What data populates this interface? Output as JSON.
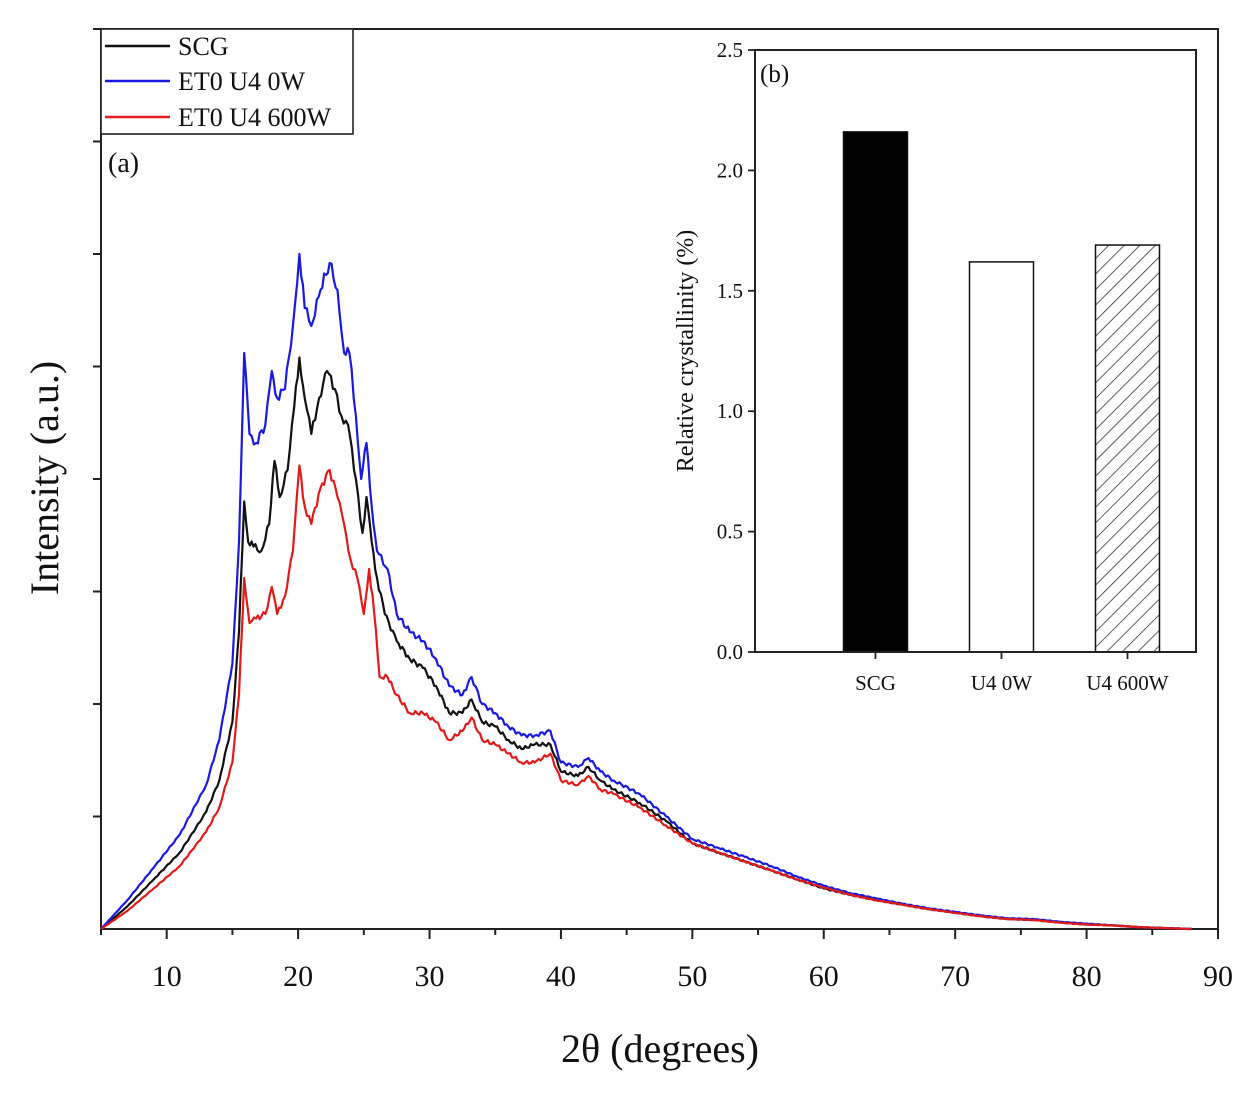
{
  "chart_data": [
    {
      "type": "line",
      "panel_label": "(a)",
      "xlabel": "2θ (degrees)",
      "ylabel": "Intensity (a.u.)",
      "xlim": [
        5,
        90
      ],
      "ylim": [
        0,
        100
      ],
      "x_ticks": [
        10,
        20,
        30,
        40,
        50,
        60,
        70,
        80,
        90
      ],
      "y_minor_tick_values": [
        12.5,
        25,
        37.5,
        50,
        62.5,
        75,
        87.5,
        100
      ],
      "y_tick_labels_shown": false,
      "legend_position": "top-left",
      "series": [
        {
          "name": "SCG",
          "color": "#111111",
          "points": [
            [
              5,
              0
            ],
            [
              7,
              2.5
            ],
            [
              9,
              5.5
            ],
            [
              11,
              8.5
            ],
            [
              13,
              13
            ],
            [
              14,
              16.5
            ],
            [
              15,
              23
            ],
            [
              15.5,
              33
            ],
            [
              15.9,
              47.5
            ],
            [
              16.2,
              43
            ],
            [
              16.6,
              42.5
            ],
            [
              17.2,
              42
            ],
            [
              17.8,
              45
            ],
            [
              18.2,
              52
            ],
            [
              18.6,
              48
            ],
            [
              19.2,
              51
            ],
            [
              19.7,
              58
            ],
            [
              20.1,
              63.5
            ],
            [
              20.5,
              59
            ],
            [
              21,
              55
            ],
            [
              21.6,
              59
            ],
            [
              22.2,
              62
            ],
            [
              22.8,
              60
            ],
            [
              23.3,
              57
            ],
            [
              23.8,
              56
            ],
            [
              24.4,
              50
            ],
            [
              24.9,
              44
            ],
            [
              25.2,
              48
            ],
            [
              25.6,
              43
            ],
            [
              26,
              39
            ],
            [
              26.6,
              35
            ],
            [
              27.5,
              32
            ],
            [
              28.5,
              30
            ],
            [
              29.5,
              29
            ],
            [
              30.5,
              27
            ],
            [
              31.5,
              24
            ],
            [
              32.5,
              24
            ],
            [
              33.2,
              25.5
            ],
            [
              34,
              23
            ],
            [
              35,
              22.5
            ],
            [
              36,
              21
            ],
            [
              37,
              20
            ],
            [
              38,
              20.5
            ],
            [
              39.2,
              20.5
            ],
            [
              40,
              17.5
            ],
            [
              41.3,
              17
            ],
            [
              42.1,
              18
            ],
            [
              43,
              16.5
            ],
            [
              44,
              15.5
            ],
            [
              46,
              14
            ],
            [
              48,
              12
            ],
            [
              50,
              9.5
            ],
            [
              52,
              8.5
            ],
            [
              54,
              7.5
            ],
            [
              56,
              6.5
            ],
            [
              58,
              5.5
            ],
            [
              60,
              4.5
            ],
            [
              62,
              3.8
            ],
            [
              64,
              3.2
            ],
            [
              66,
              2.7
            ],
            [
              68,
              2.2
            ],
            [
              70,
              1.8
            ],
            [
              72,
              1.4
            ],
            [
              74,
              1.1
            ],
            [
              76,
              1
            ],
            [
              78,
              0.7
            ],
            [
              80,
              0.5
            ],
            [
              82,
              0.4
            ],
            [
              84,
              0.2
            ],
            [
              86,
              0.1
            ],
            [
              88,
              0
            ]
          ]
        },
        {
          "name": "ET0 U4 0W",
          "color": "#1a1adf",
          "points": [
            [
              5,
              0
            ],
            [
              7,
              3.2
            ],
            [
              9,
              6.8
            ],
            [
              11,
              10.5
            ],
            [
              13,
              16
            ],
            [
              14,
              21
            ],
            [
              15,
              29.5
            ],
            [
              15.5,
              43
            ],
            [
              15.9,
              64
            ],
            [
              16.3,
              55
            ],
            [
              16.8,
              54
            ],
            [
              17.5,
              56
            ],
            [
              18,
              62
            ],
            [
              18.4,
              59
            ],
            [
              19,
              60
            ],
            [
              19.6,
              67
            ],
            [
              20.1,
              75
            ],
            [
              20.5,
              69
            ],
            [
              21,
              67
            ],
            [
              21.7,
              71
            ],
            [
              22.4,
              74
            ],
            [
              23,
              71
            ],
            [
              23.5,
              64
            ],
            [
              23.9,
              64
            ],
            [
              24.4,
              57
            ],
            [
              24.8,
              50
            ],
            [
              25.2,
              54
            ],
            [
              25.6,
              47
            ],
            [
              26,
              42
            ],
            [
              26.8,
              40
            ],
            [
              27.5,
              35
            ],
            [
              28.5,
              33
            ],
            [
              29.5,
              32
            ],
            [
              30.5,
              30
            ],
            [
              31.5,
              27
            ],
            [
              32.5,
              26
            ],
            [
              33.2,
              28
            ],
            [
              34,
              25
            ],
            [
              35,
              24
            ],
            [
              36,
              22.5
            ],
            [
              37,
              21.5
            ],
            [
              38,
              21.5
            ],
            [
              39.2,
              22
            ],
            [
              40,
              18.5
            ],
            [
              41.3,
              18
            ],
            [
              42.1,
              19
            ],
            [
              43,
              17.5
            ],
            [
              44,
              16.5
            ],
            [
              46,
              15
            ],
            [
              48,
              12.5
            ],
            [
              50,
              10
            ],
            [
              52,
              9
            ],
            [
              54,
              8
            ],
            [
              56,
              7
            ],
            [
              58,
              5.8
            ],
            [
              60,
              4.8
            ],
            [
              62,
              4
            ],
            [
              64,
              3.4
            ],
            [
              66,
              2.8
            ],
            [
              68,
              2.3
            ],
            [
              70,
              1.9
            ],
            [
              72,
              1.5
            ],
            [
              74,
              1.2
            ],
            [
              76,
              1.1
            ],
            [
              78,
              0.8
            ],
            [
              80,
              0.6
            ],
            [
              82,
              0.4
            ],
            [
              84,
              0.2
            ],
            [
              86,
              0.1
            ],
            [
              88,
              0
            ]
          ]
        },
        {
          "name": "ET0 U4 600W",
          "color": "#e21a1a",
          "points": [
            [
              5,
              0
            ],
            [
              7,
              2
            ],
            [
              9,
              4.5
            ],
            [
              11,
              7
            ],
            [
              13,
              10.8
            ],
            [
              14,
              13.5
            ],
            [
              15,
              18.5
            ],
            [
              15.5,
              26
            ],
            [
              15.9,
              39
            ],
            [
              16.3,
              34
            ],
            [
              16.8,
              34.5
            ],
            [
              17.5,
              35
            ],
            [
              18,
              38
            ],
            [
              18.4,
              35
            ],
            [
              19,
              37
            ],
            [
              19.6,
              42
            ],
            [
              20.1,
              51.5
            ],
            [
              20.5,
              47
            ],
            [
              21,
              45
            ],
            [
              21.7,
              49
            ],
            [
              22.4,
              51
            ],
            [
              23,
              48
            ],
            [
              23.5,
              45
            ],
            [
              24,
              41
            ],
            [
              24.5,
              39
            ],
            [
              25,
              35
            ],
            [
              25.4,
              40
            ],
            [
              25.8,
              35
            ],
            [
              26.2,
              28
            ],
            [
              26.8,
              28
            ],
            [
              27.5,
              26
            ],
            [
              28.5,
              24
            ],
            [
              29.5,
              24
            ],
            [
              30.5,
              23
            ],
            [
              31.5,
              21
            ],
            [
              32.5,
              22
            ],
            [
              33.2,
              23.5
            ],
            [
              34,
              21
            ],
            [
              35,
              20.5
            ],
            [
              36,
              19.5
            ],
            [
              37,
              18.5
            ],
            [
              38,
              18.5
            ],
            [
              39.2,
              19.5
            ],
            [
              40,
              16.5
            ],
            [
              41.3,
              16
            ],
            [
              42.1,
              17
            ],
            [
              43,
              15.5
            ],
            [
              44,
              15
            ],
            [
              46,
              13.5
            ],
            [
              48,
              11.5
            ],
            [
              50,
              9.5
            ],
            [
              52,
              8.5
            ],
            [
              54,
              7.5
            ],
            [
              56,
              6.5
            ],
            [
              58,
              5.5
            ],
            [
              60,
              4.6
            ],
            [
              62,
              3.8
            ],
            [
              64,
              3.2
            ],
            [
              66,
              2.7
            ],
            [
              68,
              2.2
            ],
            [
              70,
              1.8
            ],
            [
              72,
              1.4
            ],
            [
              74,
              1.1
            ],
            [
              76,
              1
            ],
            [
              78,
              0.7
            ],
            [
              80,
              0.5
            ],
            [
              82,
              0.4
            ],
            [
              84,
              0.2
            ],
            [
              86,
              0.1
            ],
            [
              88,
              0
            ]
          ]
        }
      ]
    },
    {
      "type": "bar",
      "panel_label": "(b)",
      "ylabel": "Relative crystallinity (%)",
      "xlabel": "",
      "ylim": [
        0,
        2.5
      ],
      "y_ticks": [
        "0.0",
        "0.5",
        "1.0",
        "1.5",
        "2.0",
        "2.5"
      ],
      "categories": [
        "SCG",
        "U4 0W",
        "U4 600W"
      ],
      "values": [
        2.16,
        1.62,
        1.69
      ],
      "bar_styles": [
        "solid-black",
        "white",
        "hatched"
      ]
    }
  ]
}
